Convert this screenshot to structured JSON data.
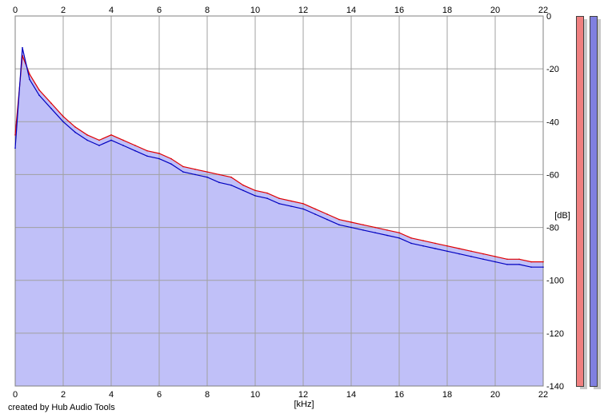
{
  "footer": {
    "credit": "created by Hub Audio Tools"
  },
  "meters": {
    "left_color": "#f08080",
    "right_color": "#8080e0"
  },
  "colors": {
    "fill": "#c0c0f8",
    "grid": "#a0a0a0",
    "series_left": "#e00000",
    "series_right": "#0000c0"
  },
  "chart_data": {
    "type": "line",
    "title": "",
    "xlabel": "[kHz]",
    "ylabel": "[dB]",
    "xlim": [
      0,
      22
    ],
    "ylim": [
      -140,
      0
    ],
    "xticks": [
      0,
      2,
      4,
      6,
      8,
      10,
      12,
      14,
      16,
      18,
      20,
      22
    ],
    "yticks": [
      0,
      -20,
      -40,
      -60,
      -80,
      -100,
      -120,
      -140
    ],
    "grid": true,
    "series": [
      {
        "color": "#e00000",
        "x": [
          0,
          0.3,
          0.6,
          1,
          1.5,
          2,
          2.5,
          3,
          3.5,
          4,
          4.5,
          5,
          5.5,
          6,
          6.5,
          7,
          7.5,
          8,
          8.5,
          9,
          9.5,
          10,
          10.5,
          11,
          11.5,
          12,
          12.5,
          13,
          13.5,
          14,
          14.5,
          15,
          15.5,
          16,
          16.5,
          17,
          17.5,
          18,
          18.5,
          19,
          19.5,
          20,
          20.5,
          21,
          21.5,
          22
        ],
        "y": [
          -45,
          -15,
          -22,
          -28,
          -33,
          -38,
          -42,
          -45,
          -47,
          -45,
          -47,
          -49,
          -51,
          -52,
          -54,
          -57,
          -58,
          -59,
          -60,
          -61,
          -64,
          -66,
          -67,
          -69,
          -70,
          -71,
          -73,
          -75,
          -77,
          -78,
          -79,
          -80,
          -81,
          -82,
          -84,
          -85,
          -86,
          -87,
          -88,
          -89,
          -90,
          -91,
          -92,
          -92,
          -93,
          -93
        ]
      },
      {
        "color": "#0000c0",
        "x": [
          0,
          0.3,
          0.6,
          1,
          1.5,
          2,
          2.5,
          3,
          3.5,
          4,
          4.5,
          5,
          5.5,
          6,
          6.5,
          7,
          7.5,
          8,
          8.5,
          9,
          9.5,
          10,
          10.5,
          11,
          11.5,
          12,
          12.5,
          13,
          13.5,
          14,
          14.5,
          15,
          15.5,
          16,
          16.5,
          17,
          17.5,
          18,
          18.5,
          19,
          19.5,
          20,
          20.5,
          21,
          21.5,
          22
        ],
        "y": [
          -50,
          -12,
          -24,
          -30,
          -35,
          -40,
          -44,
          -47,
          -49,
          -47,
          -49,
          -51,
          -53,
          -54,
          -56,
          -59,
          -60,
          -61,
          -63,
          -64,
          -66,
          -68,
          -69,
          -71,
          -72,
          -73,
          -75,
          -77,
          -79,
          -80,
          -81,
          -82,
          -83,
          -84,
          -86,
          -87,
          -88,
          -89,
          -90,
          -91,
          -92,
          -93,
          -94,
          -94,
          -95,
          -95
        ]
      }
    ]
  }
}
